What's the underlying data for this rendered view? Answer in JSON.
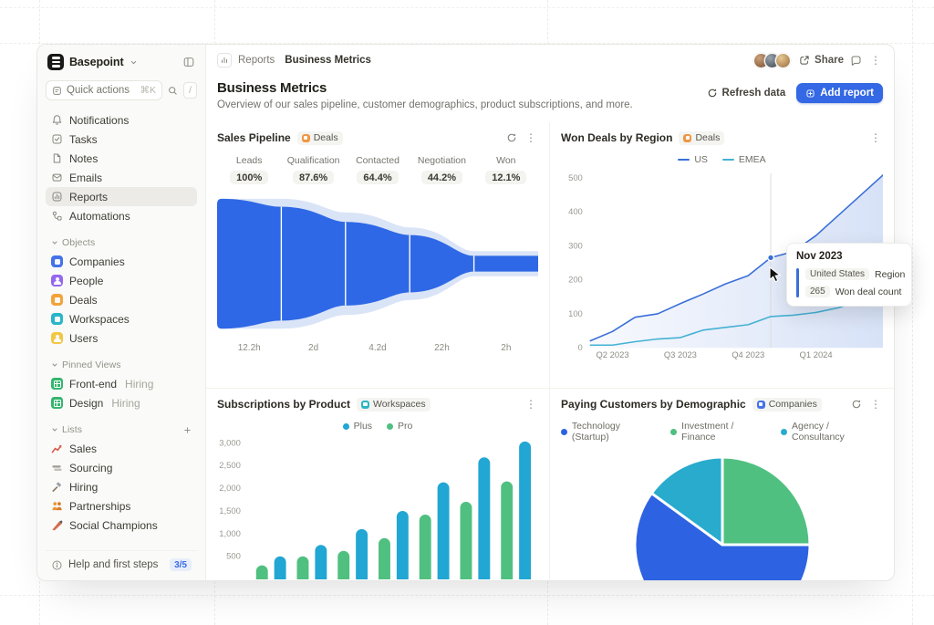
{
  "sidebar": {
    "workspace": "Basepoint",
    "quick": {
      "label": "Quick actions",
      "shortcut": "⌘K",
      "slash": "/"
    },
    "nav": {
      "items": [
        {
          "label": "Notifications"
        },
        {
          "label": "Tasks"
        },
        {
          "label": "Notes"
        },
        {
          "label": "Emails"
        },
        {
          "label": "Reports"
        },
        {
          "label": "Automations"
        }
      ]
    },
    "objects": {
      "label": "Objects",
      "items": [
        {
          "label": "Companies",
          "color": "#4472e8"
        },
        {
          "label": "People",
          "color": "#9468ef"
        },
        {
          "label": "Deals",
          "color": "#f2a33c"
        },
        {
          "label": "Workspaces",
          "color": "#2ab5c9"
        },
        {
          "label": "Users",
          "color": "#f2c744"
        }
      ]
    },
    "pinned": {
      "label": "Pinned Views",
      "items": [
        {
          "label": "Front-end",
          "suffix": "Hiring"
        },
        {
          "label": "Design",
          "suffix": "Hiring"
        }
      ]
    },
    "lists": {
      "label": "Lists",
      "items": [
        {
          "label": "Sales"
        },
        {
          "label": "Sourcing"
        },
        {
          "label": "Hiring"
        },
        {
          "label": "Partnerships"
        },
        {
          "label": "Social Champions"
        }
      ]
    },
    "footer": {
      "label": "Help and first steps",
      "badge": "3/5"
    }
  },
  "topbar": {
    "breadcrumb_section": "Reports",
    "breadcrumb_page": "Business Metrics",
    "share_label": "Share"
  },
  "header": {
    "title": "Business Metrics",
    "subtitle": "Overview of our sales pipeline, customer demographics, product subscriptions, and more.",
    "refresh_label": "Refresh data",
    "add_label": "Add report"
  },
  "chart_data": {
    "funnel": {
      "type": "area-funnel",
      "title": "Sales Pipeline",
      "object_tag": "Deals",
      "tag_color": "#ef9744",
      "color": "#2e68e6",
      "echo_color": "#c6d6f3",
      "stages": [
        {
          "label": "Leads",
          "value": "100%",
          "pct": 100,
          "duration": "12.2h"
        },
        {
          "label": "Qualification",
          "value": "87.6%",
          "pct": 87.6,
          "duration": "2d"
        },
        {
          "label": "Contacted",
          "value": "64.4%",
          "pct": 64.4,
          "duration": "4.2d"
        },
        {
          "label": "Negotiation",
          "value": "44.2%",
          "pct": 44.2,
          "duration": "22h"
        },
        {
          "label": "Won",
          "value": "12.1%",
          "pct": 12.1,
          "duration": "2h"
        }
      ]
    },
    "line": {
      "type": "line",
      "title": "Won Deals by Region",
      "object_tag": "Deals",
      "tag_color": "#ef9744",
      "y_ticks": [
        0,
        100,
        200,
        300,
        400,
        500
      ],
      "ylim": [
        0,
        500
      ],
      "x_ticks": [
        "Q2 2023",
        "Q3 2023",
        "Q4 2023",
        "Q1 2024"
      ],
      "x_tick_month_index": [
        1,
        4,
        7,
        10
      ],
      "series": [
        {
          "name": "US",
          "color": "#3A6FD8",
          "values": [
            20,
            48,
            90,
            100,
            130,
            158,
            188,
            212,
            265,
            283,
            330,
            390,
            450,
            510
          ]
        },
        {
          "name": "EMEA",
          "color": "#45B1D4",
          "values": [
            8,
            8,
            18,
            26,
            30,
            52,
            60,
            68,
            92,
            96,
            104,
            118,
            140,
            163
          ]
        }
      ],
      "hover": {
        "month_index": 8,
        "series": "US",
        "value": 265
      },
      "tooltip": {
        "title": "Nov 2023",
        "rows": [
          {
            "chip": "United States",
            "label": "Region"
          },
          {
            "chip": "265",
            "label": "Won deal count"
          }
        ]
      }
    },
    "bars": {
      "type": "bar",
      "title": "Subscriptions by Product",
      "object_tag": "Workspaces",
      "tag_color": "#2bb5c4",
      "y_ticks": [
        500,
        1000,
        1500,
        2000,
        2500,
        3000
      ],
      "ylim": [
        0,
        3000
      ],
      "series": [
        {
          "name": "Plus",
          "color": "#22a6d4",
          "values": [
            500,
            750,
            1100,
            1500,
            2130,
            2680,
            3030
          ]
        },
        {
          "name": "Pro",
          "color": "#50c080",
          "values": [
            300,
            500,
            620,
            900,
            1420,
            1700,
            2150
          ]
        }
      ]
    },
    "pie": {
      "type": "pie",
      "title": "Paying Customers by Demographic",
      "object_tag": "Companies",
      "tag_color": "#4472e8",
      "slices": [
        {
          "label": "Technology (Startup)",
          "color": "#2d63e2",
          "value": 60
        },
        {
          "label": "Investment / Finance",
          "color": "#50c080",
          "value": 25
        },
        {
          "label": "Agency / Consultancy",
          "color": "#28abcd",
          "value": 15
        }
      ],
      "draw_order": [
        1,
        0,
        2
      ]
    }
  }
}
